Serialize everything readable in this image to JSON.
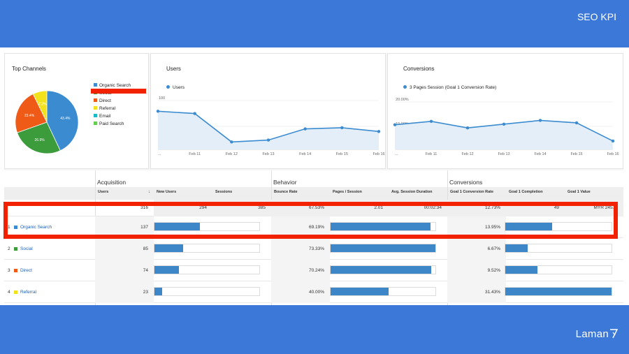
{
  "slide": {
    "title": "SEO KPI",
    "brand": "Laman"
  },
  "top_channels": {
    "title": "Top Channels",
    "legend": [
      {
        "label": "Organic Search",
        "color": "#3b8bd0"
      },
      {
        "label": "Social",
        "color": "#3c9c3c"
      },
      {
        "label": "Direct",
        "color": "#ef5b16"
      },
      {
        "label": "Referral",
        "color": "#f1e21c"
      },
      {
        "label": "Email",
        "color": "#19b9c9"
      },
      {
        "label": "Paid Search",
        "color": "#64cd52"
      }
    ],
    "slice_labels": [
      "43.4%",
      "26.9%",
      "23.4%",
      "7.3%"
    ]
  },
  "chart_data": [
    {
      "type": "pie",
      "title": "Top Channels",
      "categories": [
        "Organic Search",
        "Social",
        "Direct",
        "Referral"
      ],
      "values": [
        43.4,
        26.9,
        23.4,
        7.3
      ],
      "colors": [
        "#3b8bd0",
        "#3c9c3c",
        "#ef5b16",
        "#f1e21c"
      ]
    },
    {
      "type": "area",
      "title": "Users",
      "series": [
        {
          "name": "Users",
          "values": [
            102,
            96,
            20,
            25,
            55,
            58,
            48
          ]
        }
      ],
      "x_labels": [
        "...",
        "Feb 11",
        "Feb 12",
        "Feb 13",
        "Feb 14",
        "Feb 15",
        "Feb 16"
      ],
      "y_ticks": [
        "100",
        "50"
      ],
      "ylim": [
        0,
        140
      ]
    },
    {
      "type": "area",
      "title": "Conversions",
      "series": [
        {
          "name": "3 Pages Session (Goal 1 Conversion Rate)",
          "values": [
            13.2,
            15.0,
            11.5,
            13.5,
            15.5,
            14.2,
            4.5
          ]
        }
      ],
      "x_labels": [
        "...",
        "Feb 11",
        "Feb 12",
        "Feb 13",
        "Feb 14",
        "Feb 15",
        "Feb 16"
      ],
      "y_ticks": [
        "20.00%",
        "10.00%"
      ],
      "ylim": [
        0,
        28
      ]
    }
  ],
  "users_chart": {
    "title": "Users",
    "legend": "Users",
    "y_ticks": [
      "100",
      "50"
    ],
    "x_labels": [
      "...",
      "Feb 11",
      "Feb 12",
      "Feb 13",
      "Feb 14",
      "Feb 15",
      "Feb 16"
    ]
  },
  "conversions_chart": {
    "title": "Conversions",
    "legend": "3 Pages Session (Goal 1 Conversion Rate)",
    "y_ticks": [
      "20.00%",
      "10.00%"
    ],
    "x_labels": [
      "...",
      "Feb 11",
      "Feb 12",
      "Feb 13",
      "Feb 14",
      "Feb 15",
      "Feb 16"
    ]
  },
  "table": {
    "groups": [
      "Acquisition",
      "Behavior",
      "Conversions"
    ],
    "columns": [
      "Users",
      "New Users",
      "Sessions",
      "Bounce Rate",
      "Pages / Session",
      "Avg. Session Duration",
      "Goal 1 Conversion Rate",
      "Goal 1 Completion",
      "Goal 1 Value"
    ],
    "sort_indicator": "↓",
    "totals": [
      "316",
      "294",
      "385",
      "67.53%",
      "2.01",
      "00:02:34",
      "12.73%",
      "49",
      "MYR 245.0"
    ],
    "rows": [
      {
        "idx": "1",
        "channel": "Organic Search",
        "color": "#3b8bd0",
        "users": "137",
        "new_users_bar": 0.43,
        "bounce": "69.19%",
        "pages_bar": 0.95,
        "conv": "13.95%",
        "goal_bar": 0.44
      },
      {
        "idx": "2",
        "channel": "Social",
        "color": "#3c9c3c",
        "users": "85",
        "new_users_bar": 0.27,
        "bounce": "73.33%",
        "pages_bar": 1.0,
        "conv": "6.67%",
        "goal_bar": 0.21
      },
      {
        "idx": "3",
        "channel": "Direct",
        "color": "#ef5b16",
        "users": "74",
        "new_users_bar": 0.23,
        "bounce": "70.24%",
        "pages_bar": 0.96,
        "conv": "9.52%",
        "goal_bar": 0.3
      },
      {
        "idx": "4",
        "channel": "Referral",
        "color": "#f1e21c",
        "users": "23",
        "new_users_bar": 0.07,
        "bounce": "40.00%",
        "pages_bar": 0.55,
        "conv": "31.43%",
        "goal_bar": 1.0
      }
    ]
  }
}
